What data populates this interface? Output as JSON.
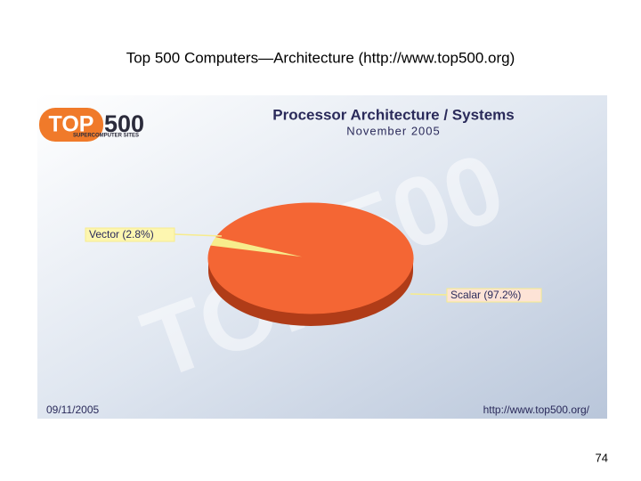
{
  "slide_title": "Top 500 Computers—Architecture (http://www.top500.org)",
  "page_number": "74",
  "logo": {
    "left": "TOP",
    "right": "500",
    "tagline": "SUPERCOMPUTER SITES"
  },
  "chart_data": {
    "type": "pie",
    "title": "Processor Architecture / Systems",
    "subtitle": "November 2005",
    "values": [
      2.8,
      97.2
    ],
    "value_labels": [
      "Vector (2.8%)",
      "Scalar (97.2%)"
    ],
    "colors": [
      "#f7ec8c",
      "#f46634"
    ],
    "date": "09/11/2005",
    "source": "http://www.top500.org/"
  }
}
